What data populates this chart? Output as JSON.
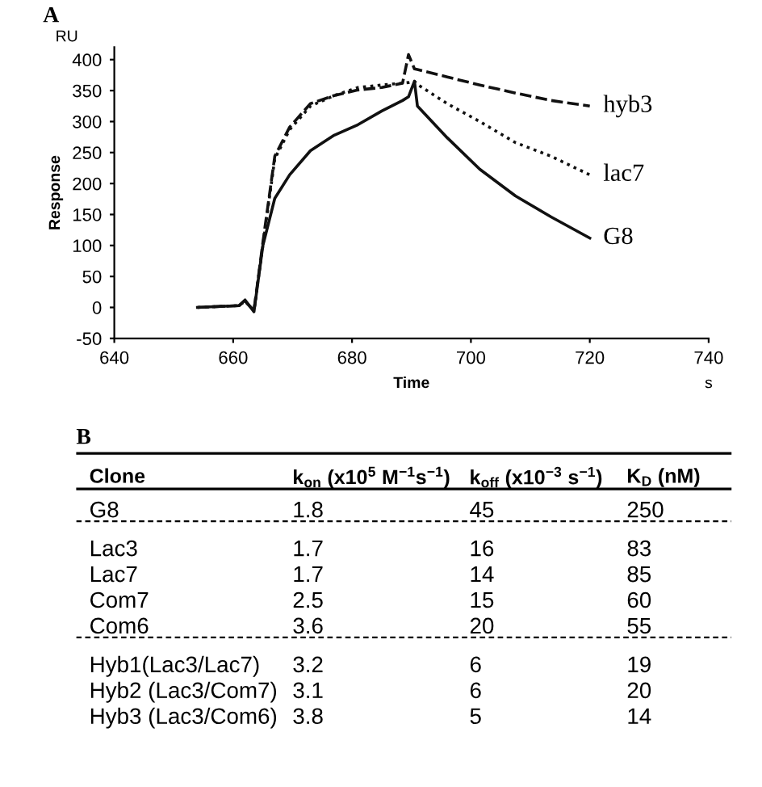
{
  "chart_data": [
    {
      "type": "line",
      "title": "A",
      "xlabel": "Time",
      "ylabel": "Response",
      "annotations": [
        "RU",
        "s"
      ],
      "x": [
        654,
        661,
        662,
        663.5,
        665,
        667,
        669.5,
        673,
        677,
        681,
        685,
        688.5,
        689.5,
        690.5,
        691,
        696,
        701.5,
        707.5,
        713.5,
        720
      ],
      "series": [
        {
          "name": "hyb3",
          "color": "#111111",
          "line_style": "dashed",
          "values": [
            0,
            3,
            10,
            -5,
            105,
            244,
            291,
            329,
            342,
            351,
            355,
            362,
            408,
            385,
            384,
            372,
            359,
            346,
            334,
            325
          ]
        },
        {
          "name": "lac7",
          "color": "#111111",
          "line_style": "dotted",
          "values": [
            0,
            3,
            10,
            -5,
            100,
            240,
            287,
            325,
            342,
            355,
            359,
            362,
            363,
            365,
            360,
            329,
            300,
            266,
            244,
            214
          ]
        },
        {
          "name": "G8",
          "color": "#111111",
          "line_style": "solid",
          "values": [
            0,
            3,
            12,
            -7,
            100,
            176,
            214,
            253,
            278,
            295,
            317,
            334,
            340,
            365,
            325,
            274,
            223,
            180,
            146,
            112
          ]
        }
      ],
      "xlim": [
        640,
        740
      ],
      "xticks": [
        640,
        660,
        680,
        700,
        720,
        740
      ],
      "ylim": [
        -50,
        420
      ],
      "yticks": [
        -50,
        0,
        50,
        100,
        150,
        200,
        250,
        300,
        350,
        400
      ],
      "grid": false,
      "legend": false,
      "marker": "none"
    },
    {
      "type": "other",
      "title": "B",
      "annotations": [
        "Clone",
        "k$_{on}$ (x10$^{5}$ M$^{−1}$s$^{−1}$)",
        "k$_{off}$ (x10$^{−3}$ s$^{−1}$)",
        "K$_{D}$ (nM)",
        "G8",
        "1.8",
        "45",
        "250",
        "Lac3",
        "1.7",
        "16",
        "83",
        "Lac7",
        "1.7",
        "14",
        "85",
        "Com7",
        "2.5",
        "15",
        "60",
        "Com6",
        "3.6",
        "20",
        "55",
        "Hyb1(Lac3/Lac7)",
        "3.2",
        "6",
        "19",
        "Hyb2 (Lac3/Com7)",
        "3.1",
        "6",
        "20",
        "Hyb3 (Lac3/Com6)",
        "3.8",
        "5",
        "14"
      ]
    }
  ]
}
